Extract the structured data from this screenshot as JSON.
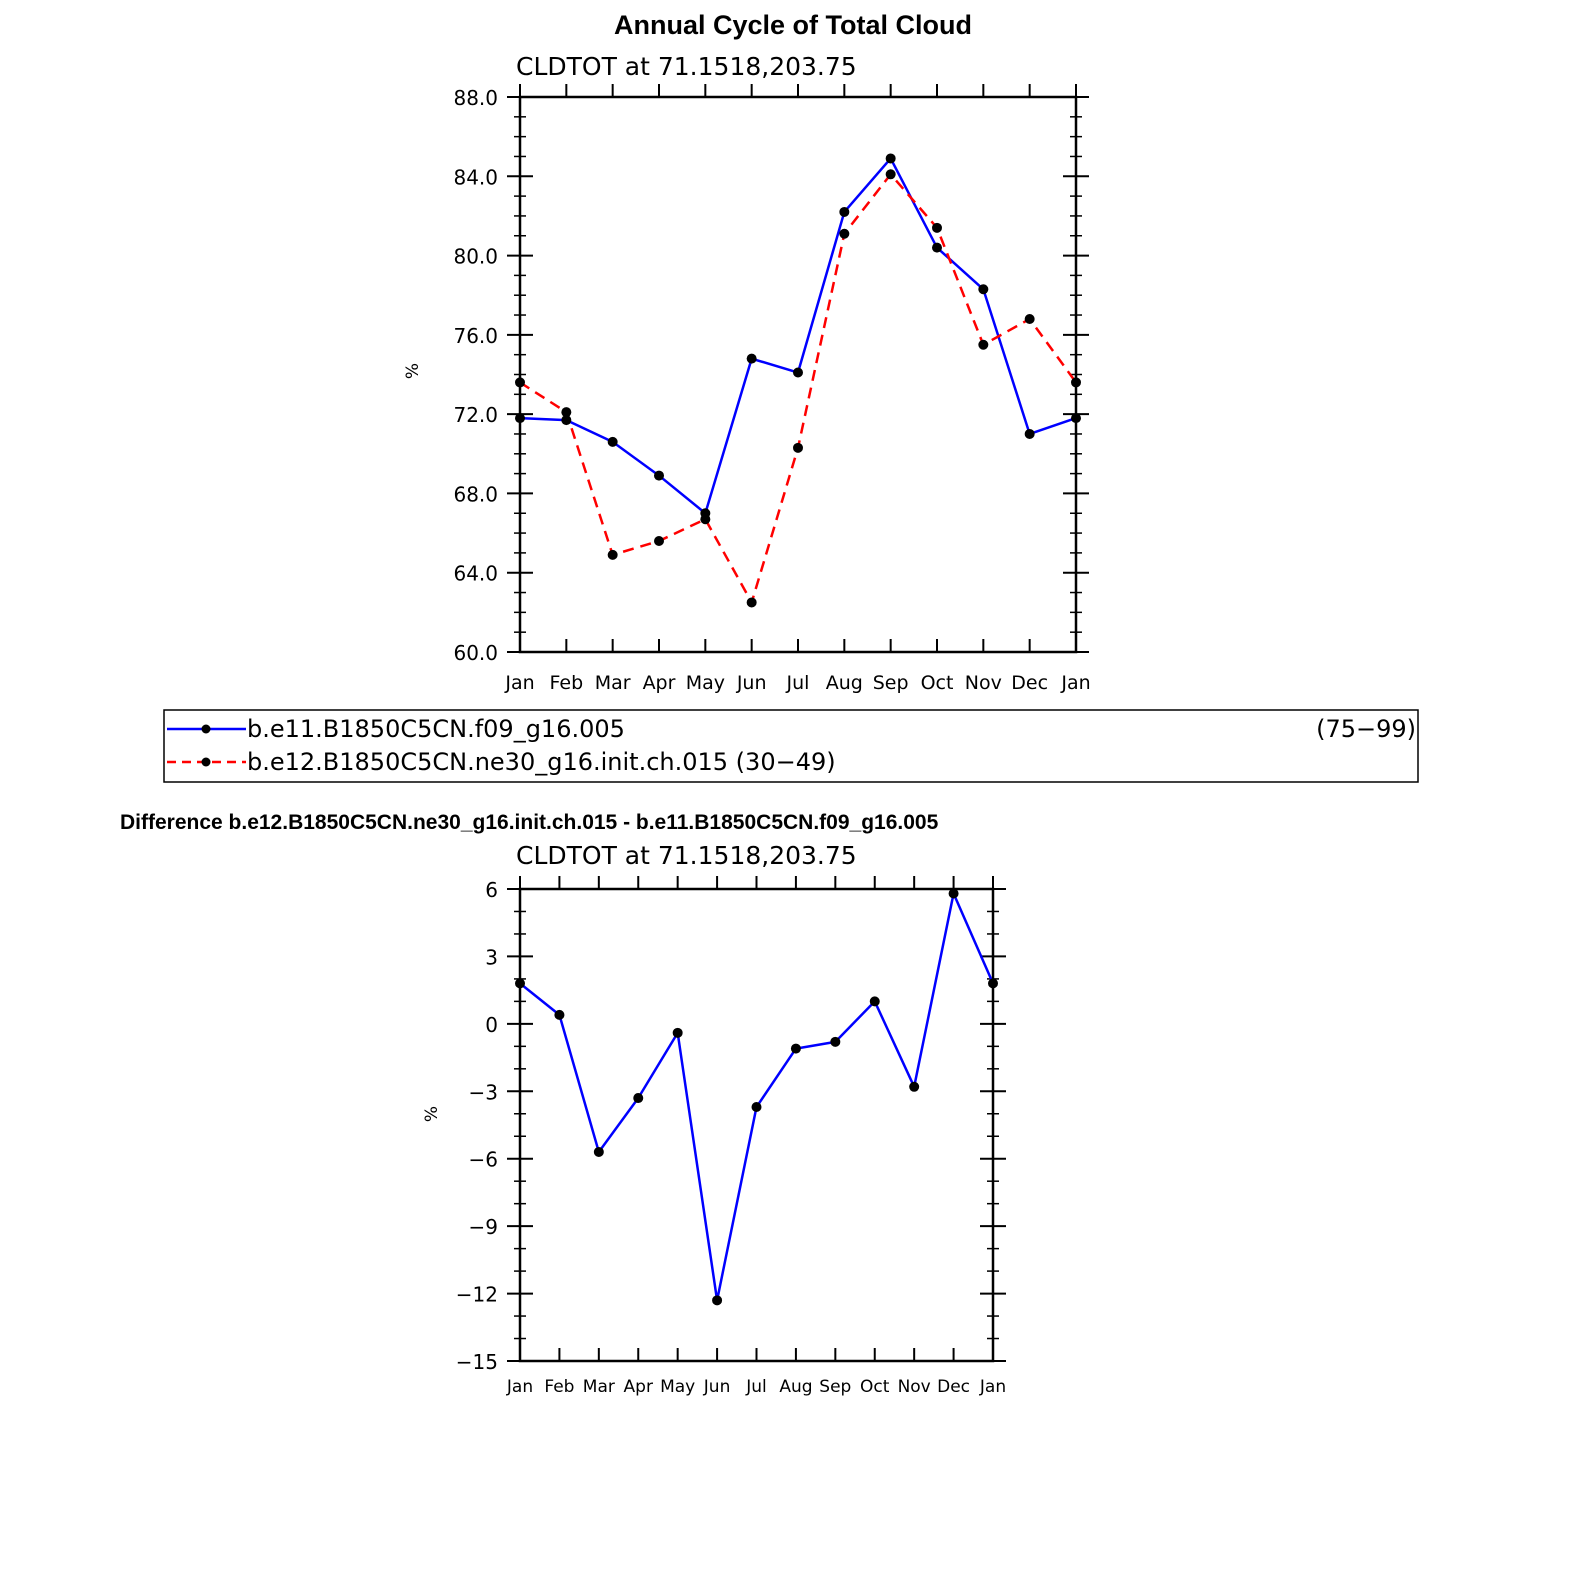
{
  "chart_data": [
    {
      "type": "line",
      "title": "Annual Cycle of Total Cloud",
      "subtitle": "CLDTOT  at  71.1518,203.75",
      "ylabel": "%",
      "xlabel": "",
      "ylim": [
        60,
        88
      ],
      "yticks": [
        "60.0",
        "64.0",
        "68.0",
        "72.0",
        "76.0",
        "80.0",
        "84.0",
        "88.0"
      ],
      "categories": [
        "Jan",
        "Feb",
        "Mar",
        "Apr",
        "May",
        "Jun",
        "Jul",
        "Aug",
        "Sep",
        "Oct",
        "Nov",
        "Dec",
        "Jan"
      ],
      "series": [
        {
          "name": "b.e11.B1850C5CN.f09_g16.005",
          "years": "(75−99)",
          "color": "#0000ff",
          "dash": "solid",
          "values": [
            71.8,
            71.7,
            70.6,
            68.9,
            67.0,
            74.8,
            74.1,
            82.2,
            84.9,
            80.4,
            78.3,
            71.0,
            71.8
          ]
        },
        {
          "name": "b.e12.B1850C5CN.ne30_g16.init.ch.015",
          "years": "(30−49)",
          "color": "#ff0000",
          "dash": "dashed",
          "values": [
            73.6,
            72.1,
            64.9,
            65.6,
            66.7,
            62.5,
            70.3,
            81.1,
            84.1,
            81.4,
            75.5,
            76.8,
            73.6
          ]
        }
      ],
      "legend": {
        "placement": "below",
        "entries": [
          {
            "label": "b.e11.B1850C5CN.f09_g16.005",
            "suffix": "(75−99)"
          },
          {
            "label": "b.e12.B1850C5CN.ne30_g16.init.ch.015 (30−49)",
            "suffix": ""
          }
        ]
      }
    },
    {
      "type": "line",
      "title": "Difference b.e12.B1850C5CN.ne30_g16.init.ch.015 - b.e11.B1850C5CN.f09_g16.005",
      "subtitle": "CLDTOT  at  71.1518,203.75",
      "ylabel": "%",
      "xlabel": "",
      "ylim": [
        -15,
        6
      ],
      "yticks": [
        "−15",
        "−12",
        "−9",
        "−6",
        "−3",
        "0",
        "3",
        "6"
      ],
      "categories": [
        "Jan",
        "Feb",
        "Mar",
        "Apr",
        "May",
        "Jun",
        "Jul",
        "Aug",
        "Sep",
        "Oct",
        "Nov",
        "Dec",
        "Jan"
      ],
      "series": [
        {
          "name": "Difference",
          "color": "#0000ff",
          "dash": "solid",
          "values": [
            1.8,
            0.4,
            -5.7,
            -3.3,
            -0.4,
            -12.3,
            -3.7,
            -1.1,
            -0.8,
            1.0,
            -2.8,
            5.8,
            1.8
          ]
        }
      ]
    }
  ]
}
